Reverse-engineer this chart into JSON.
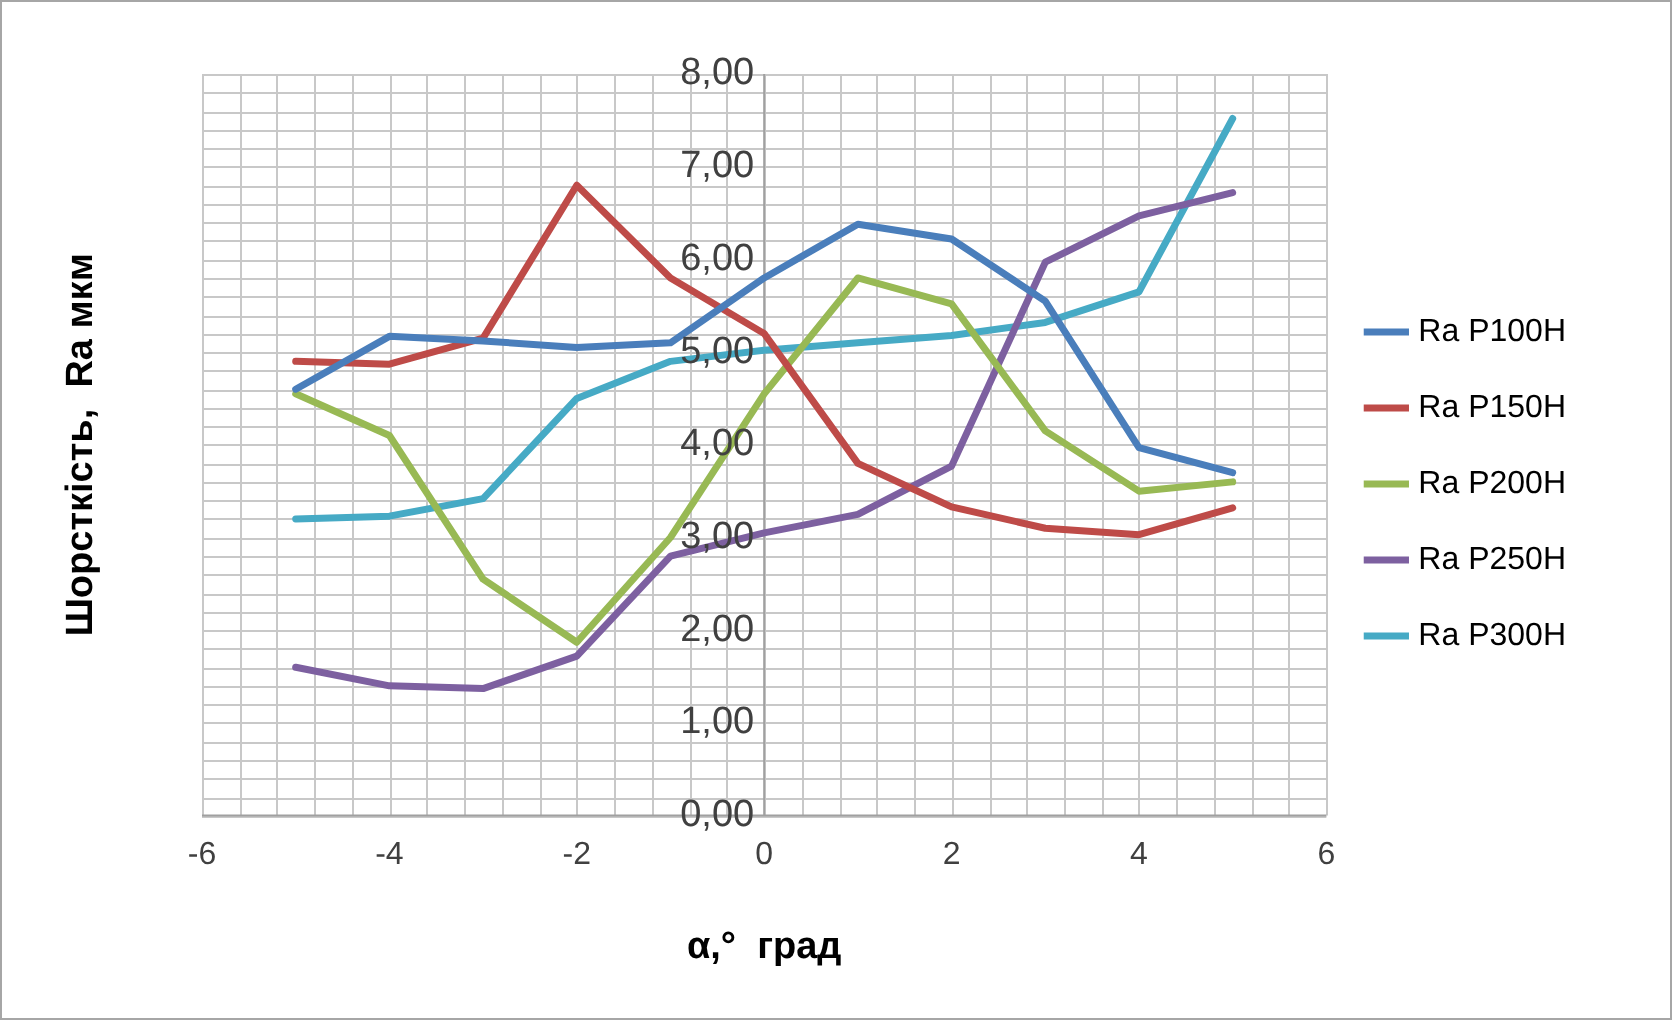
{
  "chart_data": {
    "type": "line",
    "xlabel": "α,°  град",
    "ylabel": "Шорсткість,  Ra мкм",
    "x": [
      -5,
      -4,
      -3,
      -2,
      -1,
      0,
      1,
      2,
      3,
      4,
      5
    ],
    "series": [
      {
        "name": "Ra P100H",
        "color": "#4a7ebb",
        "values": [
          4.6,
          5.17,
          5.12,
          5.05,
          5.1,
          5.8,
          6.38,
          6.22,
          5.55,
          3.97,
          3.7
        ]
      },
      {
        "name": "Ra P150H",
        "color": "#be4b48",
        "values": [
          4.9,
          4.87,
          5.15,
          6.8,
          5.8,
          5.2,
          3.8,
          3.33,
          3.1,
          3.03,
          3.32
        ]
      },
      {
        "name": "Ra P200H",
        "color": "#98b954",
        "values": [
          4.55,
          4.1,
          2.55,
          1.87,
          3.0,
          4.55,
          5.8,
          5.52,
          4.15,
          3.5,
          3.6
        ]
      },
      {
        "name": "Ra P250H",
        "color": "#7d60a0",
        "values": [
          1.6,
          1.4,
          1.37,
          1.72,
          2.8,
          3.05,
          3.25,
          3.77,
          5.97,
          6.47,
          6.72
        ]
      },
      {
        "name": "Ra P300H",
        "color": "#46aac5",
        "values": [
          3.2,
          3.23,
          3.42,
          4.5,
          4.9,
          5.02,
          5.1,
          5.18,
          5.32,
          5.65,
          7.52
        ]
      }
    ],
    "xlim": [
      -6,
      6
    ],
    "xticks": [
      -6,
      -4,
      -2,
      0,
      2,
      4,
      6
    ],
    "ylim": [
      0,
      8
    ],
    "yticks": [
      {
        "value": 0,
        "label": "0,00"
      },
      {
        "value": 1,
        "label": "1,00"
      },
      {
        "value": 2,
        "label": "2,00"
      },
      {
        "value": 3,
        "label": "3,00"
      },
      {
        "value": 4,
        "label": "4,00"
      },
      {
        "value": 5,
        "label": "5,00"
      },
      {
        "value": 6,
        "label": "6,00"
      },
      {
        "value": 7,
        "label": "7,00"
      },
      {
        "value": 8,
        "label": "8,00"
      }
    ],
    "grid": true,
    "legend": "right",
    "marker": "none",
    "line_style": "solid"
  }
}
